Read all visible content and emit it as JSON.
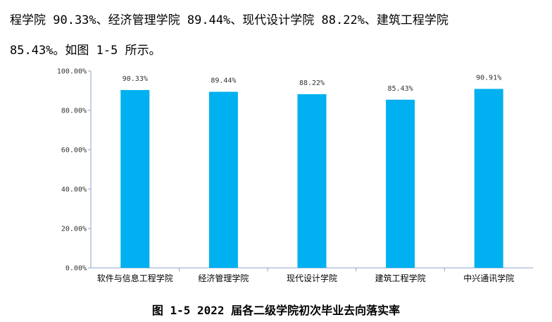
{
  "document": {
    "line1": "程学院 90.33%、经济管理学院 89.44%、现代设计学院 88.22%、建筑工程学院",
    "line2": "85.43%。如图 1-5 所示。",
    "caption": "图 1-5 2022 届各二级学院初次毕业去向落实率"
  },
  "chart_data": {
    "type": "bar",
    "title": "",
    "xlabel": "",
    "ylabel": "",
    "categories": [
      "软件与信息工程学院",
      "经济管理学院",
      "现代设计学院",
      "建筑工程学院",
      "中兴通讯学院"
    ],
    "values": [
      90.33,
      89.44,
      88.22,
      85.43,
      90.91
    ],
    "data_labels": [
      "90.33%",
      "89.44%",
      "88.22%",
      "85.43%",
      "90.91%"
    ],
    "ylim": [
      0,
      100
    ],
    "yticks": [
      "0.00%",
      "20.00%",
      "40.00%",
      "60.00%",
      "80.00%",
      "100.00%"
    ],
    "grid": false,
    "legend": "none",
    "colors": {
      "bar": "#00b0f0",
      "axis": "#8ea6c6"
    }
  }
}
